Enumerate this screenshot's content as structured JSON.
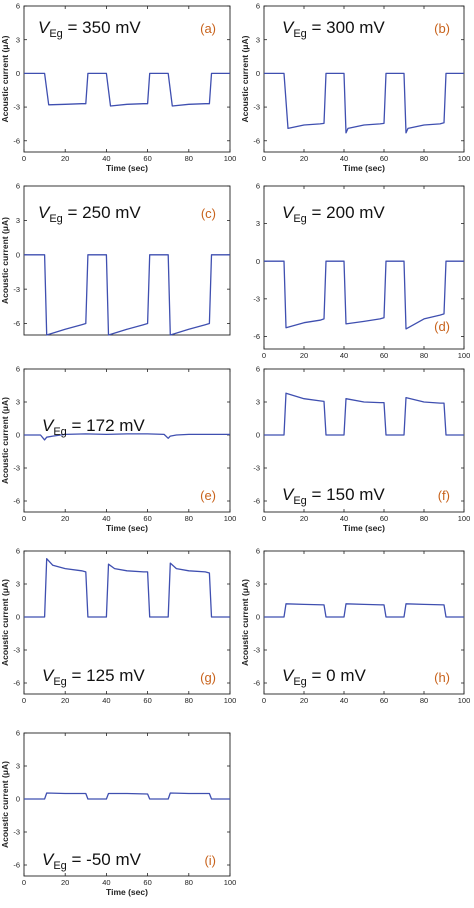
{
  "colors": {
    "trace": "#3f4fb0",
    "panel_letter": "#c8621b",
    "axis": "#222222"
  },
  "chart_data": [
    {
      "type": "line",
      "panel": "(a)",
      "label_main": "V",
      "label_sub": "Eg",
      "label_value": " = 350 mV",
      "xlabel": "Time (sec)",
      "ylabel": "Acoustic current (μA)",
      "xlim": [
        0,
        100
      ],
      "ylim": [
        -7,
        6
      ],
      "xticks": [
        0,
        20,
        40,
        60,
        80,
        100
      ],
      "yticks": [
        6,
        3,
        0,
        -3,
        -6
      ],
      "series": [
        {
          "x": [
            0,
            10,
            12,
            20,
            28,
            30,
            31,
            38,
            40,
            42,
            50,
            58,
            60,
            61,
            68,
            70,
            72,
            80,
            88,
            90,
            91,
            100
          ],
          "y": [
            0,
            0,
            -2.8,
            -2.75,
            -2.7,
            -2.7,
            0,
            0,
            0,
            -2.9,
            -2.75,
            -2.7,
            -2.7,
            0,
            0,
            0,
            -2.9,
            -2.75,
            -2.7,
            -2.7,
            0,
            0
          ]
        }
      ]
    },
    {
      "type": "line",
      "panel": "(b)",
      "label_main": "V",
      "label_sub": "Eg",
      "label_value": " = 300 mV",
      "xlabel": "Time (sec)",
      "ylabel": "Acoustic current (μA)",
      "xlim": [
        0,
        100
      ],
      "ylim": [
        -7,
        6
      ],
      "xticks": [
        0,
        20,
        40,
        60,
        80,
        100
      ],
      "yticks": [
        6,
        3,
        0,
        -3,
        -6
      ],
      "series": [
        {
          "x": [
            0,
            10,
            12,
            20,
            28,
            30,
            31,
            38,
            40,
            41,
            42,
            50,
            58,
            60,
            61,
            68,
            70,
            71,
            72,
            80,
            88,
            90,
            91,
            100
          ],
          "y": [
            0,
            0,
            -4.9,
            -4.6,
            -4.5,
            -4.45,
            0,
            0,
            0,
            -5.3,
            -4.9,
            -4.6,
            -4.5,
            -4.45,
            0,
            0,
            0,
            -5.3,
            -4.9,
            -4.6,
            -4.5,
            -4.4,
            0,
            0
          ]
        }
      ]
    },
    {
      "type": "line",
      "panel": "(c)",
      "label_main": "V",
      "label_sub": "Eg",
      "label_value": " = 250 mV",
      "xlabel": "",
      "ylabel": "Acoustic current (μA)",
      "xlim": [
        0,
        100
      ],
      "ylim": [
        -7,
        6
      ],
      "xticks": [],
      "yticks": [
        6,
        3,
        0,
        -3,
        -6
      ],
      "series": [
        {
          "x": [
            0,
            10,
            11,
            20,
            28,
            30,
            31,
            38,
            40,
            41,
            50,
            58,
            60,
            61,
            68,
            70,
            71,
            80,
            88,
            90,
            91,
            100
          ],
          "y": [
            0,
            0,
            -7,
            -6.5,
            -6.1,
            -6,
            0,
            0,
            0,
            -7,
            -6.5,
            -6.1,
            -6,
            0,
            0,
            0,
            -7,
            -6.5,
            -6.1,
            -6,
            0,
            0
          ]
        }
      ]
    },
    {
      "type": "line",
      "panel": "(d)",
      "label_main": "V",
      "label_sub": "Eg",
      "label_value": " = 200 mV",
      "xlabel": "",
      "ylabel": "",
      "xlim": [
        0,
        100
      ],
      "ylim": [
        -7,
        6
      ],
      "xticks": [
        0,
        20,
        40,
        60,
        80,
        100
      ],
      "yticks": [
        6,
        3,
        0,
        -3,
        -6
      ],
      "series": [
        {
          "x": [
            0,
            10,
            11,
            20,
            28,
            30,
            31,
            38,
            40,
            41,
            50,
            58,
            60,
            61,
            68,
            70,
            71,
            80,
            88,
            90,
            91,
            100
          ],
          "y": [
            0,
            0,
            -5.3,
            -4.9,
            -4.7,
            -4.6,
            0,
            0,
            0,
            -5.0,
            -4.8,
            -4.6,
            -4.5,
            0,
            0,
            0,
            -5.4,
            -4.6,
            -4.3,
            -4.2,
            0,
            0
          ]
        }
      ]
    },
    {
      "type": "line",
      "panel": "(e)",
      "label_main": "V",
      "label_sub": "Eg",
      "label_value": " = 172 mV",
      "xlabel": "Time (sec)",
      "ylabel": "Acoustic current (μA)",
      "xlim": [
        0,
        100
      ],
      "ylim": [
        -7,
        6
      ],
      "xticks": [
        0,
        20,
        40,
        60,
        80,
        100
      ],
      "yticks": [
        6,
        3,
        0,
        -3,
        -6
      ],
      "series": [
        {
          "x": [
            0,
            8,
            10,
            11,
            14,
            20,
            30,
            40,
            50,
            60,
            68,
            70,
            71,
            74,
            80,
            90,
            100
          ],
          "y": [
            0,
            0,
            -0.45,
            -0.2,
            -0.1,
            0.05,
            0.1,
            0.05,
            0.1,
            0.1,
            0.05,
            -0.3,
            -0.1,
            0,
            0.05,
            0.05,
            0.05
          ]
        }
      ]
    },
    {
      "type": "line",
      "panel": "(f)",
      "label_main": "V",
      "label_sub": "Eg",
      "label_value": " = 150 mV",
      "xlabel": "Time (sec)",
      "ylabel": "",
      "xlim": [
        0,
        100
      ],
      "ylim": [
        -7,
        6
      ],
      "xticks": [
        0,
        20,
        40,
        60,
        80,
        100
      ],
      "yticks": [
        6,
        3,
        0,
        -3,
        -6
      ],
      "series": [
        {
          "x": [
            0,
            10,
            11,
            20,
            28,
            30,
            31,
            38,
            40,
            41,
            50,
            58,
            60,
            61,
            68,
            70,
            71,
            80,
            88,
            90,
            91,
            100
          ],
          "y": [
            0,
            0,
            3.8,
            3.3,
            3.1,
            3.05,
            0,
            0,
            0,
            3.3,
            3.0,
            2.95,
            2.95,
            0,
            0,
            0,
            3.4,
            3.0,
            2.9,
            2.9,
            0,
            0
          ]
        }
      ]
    },
    {
      "type": "line",
      "panel": "(g)",
      "label_main": "V",
      "label_sub": "Eg",
      "label_value": " = 125 mV",
      "xlabel": "",
      "ylabel": "Acoustic current (μA)",
      "xlim": [
        0,
        100
      ],
      "ylim": [
        -7,
        6
      ],
      "xticks": [
        0,
        20,
        40,
        60,
        80,
        100
      ],
      "yticks": [
        6,
        3,
        0,
        -3,
        -6
      ],
      "series": [
        {
          "x": [
            0,
            10,
            11,
            14,
            20,
            28,
            30,
            31,
            38,
            40,
            41,
            44,
            50,
            58,
            60,
            61,
            68,
            70,
            71,
            74,
            80,
            88,
            90,
            91,
            100
          ],
          "y": [
            0,
            0,
            5.3,
            4.7,
            4.4,
            4.2,
            4.1,
            0,
            0,
            0,
            4.8,
            4.4,
            4.2,
            4.1,
            4.1,
            0,
            0,
            0,
            4.9,
            4.4,
            4.2,
            4.1,
            4.0,
            0,
            0
          ]
        }
      ]
    },
    {
      "type": "line",
      "panel": "(h)",
      "label_main": "V",
      "label_sub": "Eg",
      "label_value": " = 0 mV",
      "xlabel": "",
      "ylabel": "Acoustic current (μA)",
      "xlim": [
        0,
        100
      ],
      "ylim": [
        -7,
        6
      ],
      "xticks": [
        0,
        20,
        40,
        60,
        80,
        100
      ],
      "yticks": [
        6,
        3,
        0,
        -3,
        -6
      ],
      "series": [
        {
          "x": [
            0,
            10,
            11,
            20,
            30,
            31,
            40,
            41,
            50,
            60,
            61,
            70,
            71,
            80,
            90,
            91,
            100
          ],
          "y": [
            0,
            0,
            1.2,
            1.15,
            1.1,
            0,
            0,
            1.2,
            1.15,
            1.1,
            0,
            0,
            1.2,
            1.15,
            1.1,
            0,
            0
          ]
        }
      ]
    },
    {
      "type": "line",
      "panel": "(i)",
      "label_main": "V",
      "label_sub": "Eg",
      "label_value": " = -50 mV",
      "xlabel": "Time (sec)",
      "ylabel": "Acoustic current (μA)",
      "xlim": [
        0,
        100
      ],
      "ylim": [
        -7,
        6
      ],
      "xticks": [
        0,
        20,
        40,
        60,
        80,
        100
      ],
      "yticks": [
        6,
        3,
        0,
        -3,
        -6
      ],
      "series": [
        {
          "x": [
            0,
            10,
            11,
            20,
            30,
            31,
            40,
            41,
            50,
            60,
            61,
            70,
            71,
            80,
            90,
            91,
            100
          ],
          "y": [
            0,
            0,
            0.55,
            0.5,
            0.5,
            0,
            0,
            0.5,
            0.5,
            0.45,
            0,
            0,
            0.55,
            0.5,
            0.5,
            0,
            0
          ]
        }
      ]
    }
  ]
}
